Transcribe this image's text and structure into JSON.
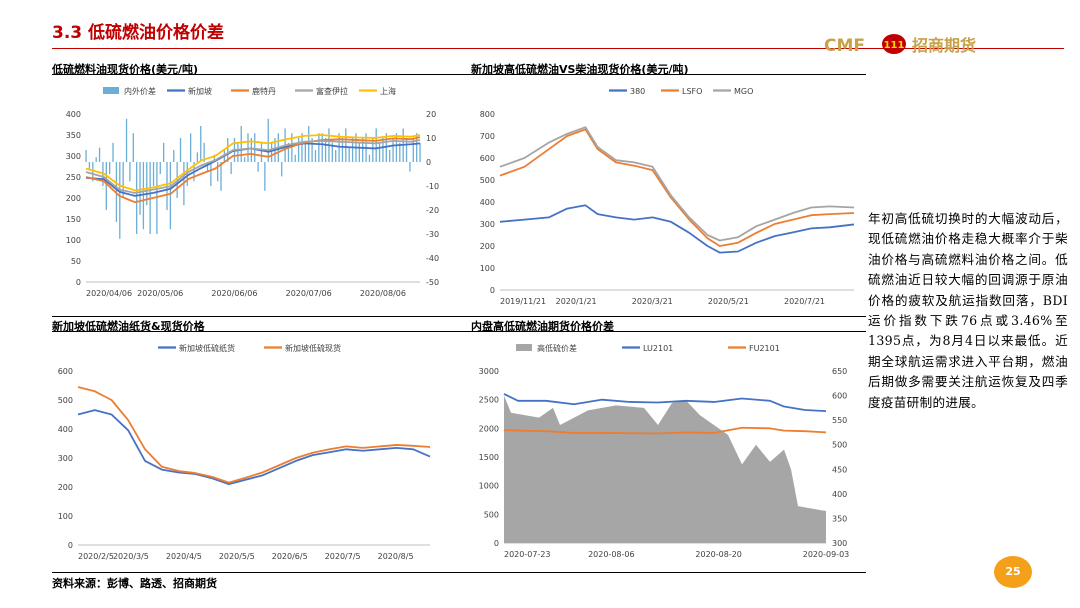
{
  "header": {
    "title": "3.3 低硫燃油价格价差",
    "logo_text": "CMF",
    "logo_cn": "招商期货",
    "logo_emblem": "111"
  },
  "commentary": "年初高低硫切换时的大幅波动后，现低硫燃油价格走稳大概率介于柴油价格与高硫燃料油价格之间。低硫燃油近日较大幅的回调源于原油价格的疲软及航运指数回落，BDI运价指数下跌76点或3.46%至1395点，为8月4日以来最低。近期全球航运需求进入平台期，燃油后期做多需要关注航运恢复及四季度疫苗研制的进展。",
  "footer": {
    "source": "资料来源：彭博、路透、招商期货",
    "page": "25"
  },
  "colors": {
    "title": "#c00000",
    "series_blue": "#4472c4",
    "series_orange": "#ed7d31",
    "series_gray": "#a5a5a5",
    "series_yellow": "#ffc000",
    "bar_lightblue": "#6baed6",
    "area_gray": "#a6a6a6",
    "page_badge": "#f5a01a"
  },
  "chart_data": [
    {
      "id": "c1",
      "type": "line",
      "title": "低硫燃料油现货价格(美元/吨)",
      "x_ticks": [
        "2020/04/06",
        "2020/05/06",
        "2020/06/06",
        "2020/07/06",
        "2020/08/06"
      ],
      "x_range": [
        0,
        150
      ],
      "ylim": [
        0,
        400
      ],
      "y_ticks": [
        "0",
        "50",
        "100",
        "150",
        "200",
        "250",
        "300",
        "350",
        "400"
      ],
      "y2lim": [
        -50,
        20
      ],
      "y2_ticks": [
        "-50",
        "-40",
        "-30",
        "-20",
        "-10",
        "0",
        "10",
        "20"
      ],
      "legend_position": "top",
      "series": [
        {
          "name": "内外价差",
          "kind": "bar",
          "axis": "right",
          "color": "#6baed6",
          "values": [
            5,
            -3,
            -8,
            2,
            6,
            -10,
            -20,
            -5,
            8,
            -25,
            -32,
            -15,
            18,
            -8,
            12,
            -30,
            -22,
            -28,
            -18,
            -30,
            -10,
            -30,
            -5,
            8,
            -20,
            -28,
            5,
            -15,
            10,
            -18,
            -10,
            12,
            -8,
            4,
            15,
            8,
            -4,
            -10,
            3,
            -8,
            -12,
            5,
            10,
            -5,
            10,
            8,
            15,
            2,
            12,
            10,
            12,
            -4,
            8,
            -12,
            18,
            8,
            10,
            12,
            -6,
            14,
            8,
            12,
            3,
            10,
            12,
            8,
            15,
            10,
            5,
            12,
            12,
            10,
            14,
            8,
            5,
            12,
            10,
            14,
            6,
            10,
            12,
            8,
            10,
            12,
            3,
            10,
            14,
            8,
            10,
            12,
            5,
            10,
            12,
            8,
            14,
            10,
            -4,
            10,
            12,
            8
          ]
        },
        {
          "name": "新加坡",
          "axis": "left",
          "color": "#4472c4",
          "x": [
            0,
            8,
            15,
            22,
            30,
            38,
            46,
            52,
            58,
            66,
            74,
            82,
            90,
            98,
            106,
            114,
            122,
            130,
            138,
            146,
            150
          ],
          "values": [
            248,
            245,
            215,
            205,
            212,
            222,
            255,
            272,
            288,
            312,
            318,
            310,
            322,
            330,
            328,
            322,
            320,
            318,
            325,
            328,
            330
          ]
        },
        {
          "name": "鹿特丹",
          "axis": "left",
          "color": "#ed7d31",
          "x": [
            0,
            8,
            15,
            22,
            30,
            38,
            46,
            52,
            58,
            66,
            74,
            82,
            90,
            98,
            106,
            114,
            122,
            130,
            138,
            146,
            150
          ],
          "values": [
            250,
            240,
            205,
            190,
            200,
            210,
            245,
            258,
            270,
            300,
            305,
            298,
            318,
            332,
            338,
            340,
            338,
            336,
            342,
            340,
            345
          ]
        },
        {
          "name": "富查伊拉",
          "axis": "left",
          "color": "#a5a5a5",
          "x": [
            0,
            8,
            15,
            22,
            30,
            38,
            46,
            52,
            58,
            66,
            74,
            82,
            90,
            98,
            106,
            114,
            122,
            130,
            138,
            146,
            150
          ],
          "values": [
            262,
            250,
            220,
            212,
            220,
            228,
            262,
            278,
            290,
            314,
            318,
            314,
            326,
            334,
            336,
            334,
            332,
            330,
            336,
            334,
            338
          ]
        },
        {
          "name": "上海",
          "axis": "left",
          "color": "#ffc000",
          "x": [
            0,
            8,
            15,
            22,
            30,
            38,
            46,
            52,
            58,
            66,
            74,
            82,
            90,
            98,
            106,
            114,
            122,
            130,
            138,
            146,
            150
          ],
          "values": [
            270,
            258,
            230,
            218,
            225,
            235,
            268,
            290,
            300,
            330,
            335,
            330,
            340,
            348,
            350,
            346,
            344,
            343,
            348,
            346,
            350
          ]
        }
      ]
    },
    {
      "id": "c2",
      "type": "line",
      "title": "新加坡高低硫燃油VS柴油现货价格(美元/吨)",
      "x_ticks": [
        "2019/11/21",
        "2020/1/21",
        "2020/3/21",
        "2020/5/21",
        "2020/7/21"
      ],
      "x_range": [
        0,
        290
      ],
      "ylim": [
        0,
        800
      ],
      "y_ticks": [
        "0",
        "100",
        "200",
        "300",
        "400",
        "500",
        "600",
        "700",
        "800"
      ],
      "legend_position": "top",
      "series": [
        {
          "name": "380",
          "color": "#4472c4",
          "x": [
            0,
            20,
            40,
            55,
            70,
            80,
            95,
            110,
            125,
            140,
            155,
            170,
            180,
            195,
            210,
            225,
            240,
            255,
            270,
            290
          ],
          "values": [
            310,
            320,
            330,
            370,
            385,
            345,
            330,
            320,
            330,
            310,
            260,
            200,
            170,
            175,
            215,
            245,
            262,
            280,
            285,
            298
          ]
        },
        {
          "name": "LSFO",
          "color": "#ed7d31",
          "x": [
            0,
            20,
            40,
            55,
            70,
            80,
            95,
            110,
            125,
            140,
            155,
            170,
            180,
            195,
            210,
            225,
            240,
            255,
            270,
            290
          ],
          "values": [
            520,
            560,
            640,
            700,
            730,
            640,
            580,
            565,
            545,
            420,
            320,
            235,
            200,
            215,
            260,
            300,
            320,
            340,
            345,
            350
          ]
        },
        {
          "name": "MGO",
          "color": "#a5a5a5",
          "x": [
            0,
            20,
            40,
            55,
            70,
            80,
            95,
            110,
            125,
            140,
            155,
            170,
            180,
            195,
            210,
            225,
            240,
            255,
            270,
            290
          ],
          "values": [
            560,
            600,
            670,
            710,
            740,
            650,
            590,
            580,
            560,
            430,
            330,
            250,
            225,
            240,
            290,
            320,
            350,
            375,
            380,
            375
          ]
        }
      ]
    },
    {
      "id": "c3",
      "type": "line",
      "title": "新加坡低硫燃油纸货&现货价格",
      "x_ticks": [
        "2020/2/5",
        "2020/3/5",
        "2020/4/5",
        "2020/5/5",
        "2020/6/5",
        "2020/7/5",
        "2020/8/5"
      ],
      "x_range": [
        0,
        210
      ],
      "ylim": [
        0,
        600
      ],
      "y_ticks": [
        "0",
        "100",
        "200",
        "300",
        "400",
        "500",
        "600"
      ],
      "legend_position": "top",
      "series": [
        {
          "name": "新加坡低硫纸货",
          "color": "#4472c4",
          "x": [
            0,
            10,
            20,
            30,
            40,
            50,
            60,
            70,
            80,
            90,
            100,
            110,
            120,
            130,
            140,
            150,
            160,
            170,
            180,
            190,
            200,
            210
          ],
          "values": [
            450,
            465,
            450,
            395,
            290,
            260,
            250,
            245,
            230,
            210,
            225,
            240,
            265,
            290,
            310,
            320,
            330,
            325,
            330,
            335,
            330,
            305
          ]
        },
        {
          "name": "新加坡低硫现货",
          "color": "#ed7d31",
          "x": [
            0,
            10,
            20,
            30,
            40,
            50,
            60,
            70,
            80,
            90,
            100,
            110,
            120,
            130,
            140,
            150,
            160,
            170,
            180,
            190,
            200,
            210
          ],
          "values": [
            545,
            530,
            500,
            430,
            330,
            270,
            255,
            248,
            235,
            215,
            232,
            250,
            275,
            300,
            318,
            330,
            340,
            335,
            340,
            345,
            342,
            338
          ]
        }
      ]
    },
    {
      "id": "c4",
      "type": "line",
      "title": "内盘高低硫燃油期货价格价差",
      "x_ticks": [
        "2020-07-23",
        "2020-08-06",
        "2020-08-20",
        "2020-09-03"
      ],
      "x_range": [
        0,
        46
      ],
      "ylim": [
        0,
        3000
      ],
      "y_ticks": [
        "0",
        "500",
        "1000",
        "1500",
        "2000",
        "2500",
        "3000"
      ],
      "y2lim": [
        300,
        650
      ],
      "y2_ticks": [
        "300",
        "350",
        "400",
        "450",
        "500",
        "550",
        "600",
        "650"
      ],
      "legend_position": "top",
      "series": [
        {
          "name": "高低硫价差",
          "kind": "area",
          "axis": "right",
          "color": "#a6a6a6",
          "x": [
            0,
            1,
            5,
            7,
            8,
            12,
            16,
            20,
            22,
            24,
            26,
            28,
            32,
            34,
            36,
            38,
            40,
            41,
            42,
            44,
            46
          ],
          "values": [
            600,
            565,
            555,
            575,
            540,
            570,
            580,
            575,
            540,
            585,
            590,
            560,
            520,
            460,
            500,
            465,
            490,
            450,
            375,
            370,
            365
          ]
        },
        {
          "name": "LU2101",
          "axis": "left",
          "color": "#4472c4",
          "x": [
            0,
            2,
            6,
            10,
            14,
            18,
            22,
            26,
            30,
            34,
            38,
            40,
            43,
            46
          ],
          "values": [
            2600,
            2480,
            2480,
            2420,
            2500,
            2460,
            2450,
            2480,
            2460,
            2520,
            2480,
            2380,
            2320,
            2300
          ]
        },
        {
          "name": "FU2101",
          "axis": "left",
          "color": "#ed7d31",
          "x": [
            0,
            2,
            6,
            10,
            14,
            18,
            22,
            26,
            30,
            34,
            38,
            40,
            43,
            46
          ],
          "values": [
            1970,
            1960,
            1950,
            1920,
            1920,
            1915,
            1910,
            1930,
            1920,
            2010,
            2000,
            1960,
            1950,
            1930
          ]
        }
      ]
    }
  ]
}
